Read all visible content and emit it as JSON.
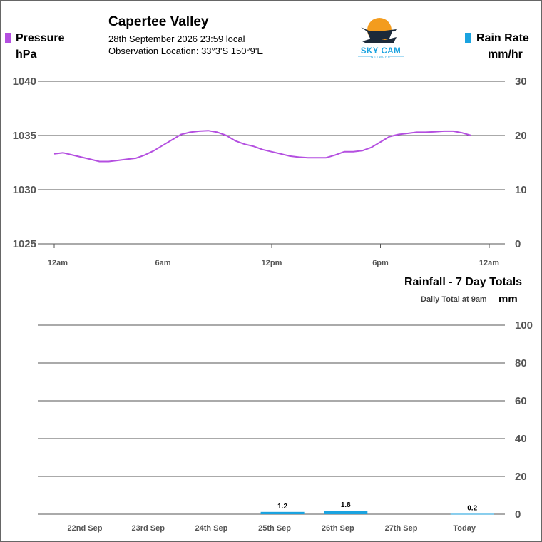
{
  "header": {
    "title": "Capertee Valley",
    "datetime": "28th September 2026  23:59 local",
    "location": "Observation Location:   33°3'S 150°9'E"
  },
  "logo": {
    "line1": "SKY CAM",
    "line2": "NETWORK"
  },
  "legend": {
    "pressure_label": "Pressure",
    "pressure_unit": "hPa",
    "pressure_color": "#b44fe0",
    "rain_rate_label": "Rain Rate",
    "rain_rate_unit": "mm/hr",
    "rain_color": "#1aa3e0"
  },
  "rainfall_header": {
    "title": "Rainfall - 7 Day Totals",
    "note": "Daily Total at 9am",
    "unit": "mm"
  },
  "chart_data": [
    {
      "type": "line",
      "title": "",
      "x_ticks": [
        "12am",
        "6am",
        "12pm",
        "6pm",
        "12am"
      ],
      "x_tick_hours": [
        0,
        6,
        12,
        18,
        24
      ],
      "y_left": {
        "label": "Pressure hPa",
        "ticks": [
          1040,
          1035,
          1030,
          1025
        ],
        "ylim": [
          1025,
          1040
        ]
      },
      "y_right": {
        "label": "Rain Rate mm/hr",
        "ticks": [
          30,
          20,
          10,
          0
        ],
        "ylim": [
          0,
          30
        ]
      },
      "grid": true,
      "series": [
        {
          "name": "Pressure",
          "x_hours": [
            0,
            0.5,
            1,
            1.5,
            2,
            2.5,
            3,
            3.5,
            4,
            4.5,
            5,
            5.5,
            6,
            6.5,
            7,
            7.5,
            8,
            8.5,
            9,
            9.5,
            10,
            10.5,
            11,
            11.5,
            12,
            12.5,
            13,
            13.5,
            14,
            14.5,
            15,
            15.5,
            16,
            16.5,
            17,
            17.5,
            18,
            18.5,
            19,
            19.5,
            20,
            20.5,
            21,
            21.5,
            22,
            22.5,
            23,
            23.5,
            24
          ],
          "values": [
            1033.3,
            1033.4,
            1033.2,
            1033.0,
            1032.8,
            1032.6,
            1032.6,
            1032.7,
            1032.8,
            1032.9,
            1033.2,
            1033.6,
            1034.1,
            1034.6,
            1035.1,
            1035.3,
            1035.4,
            1035.45,
            1035.3,
            1035.0,
            1034.5,
            1034.2,
            1034.0,
            1033.7,
            1033.5,
            1033.3,
            1033.1,
            1033.0,
            1032.95,
            1032.95,
            1032.95,
            1033.2,
            1033.5,
            1033.5,
            1033.6,
            1033.9,
            1034.4,
            1034.9,
            1035.1,
            1035.2,
            1035.3,
            1035.3,
            1035.35,
            1035.4,
            1035.4,
            1035.25,
            1035.0,
            null,
            null
          ]
        }
      ]
    },
    {
      "type": "bar",
      "title": "Rainfall - 7 Day Totals",
      "categories": [
        "22nd Sep",
        "23rd Sep",
        "24th Sep",
        "25th Sep",
        "26th Sep",
        "27th Sep",
        "Today"
      ],
      "values": [
        0,
        0,
        0,
        1.2,
        1.8,
        0,
        0.2
      ],
      "value_labels": [
        "",
        "",
        "",
        "1.2",
        "1.8",
        "",
        "0.2"
      ],
      "y_ticks": [
        100,
        80,
        60,
        40,
        20,
        0
      ],
      "ylim": [
        0,
        100
      ],
      "ylabel": "mm",
      "grid": true
    }
  ]
}
